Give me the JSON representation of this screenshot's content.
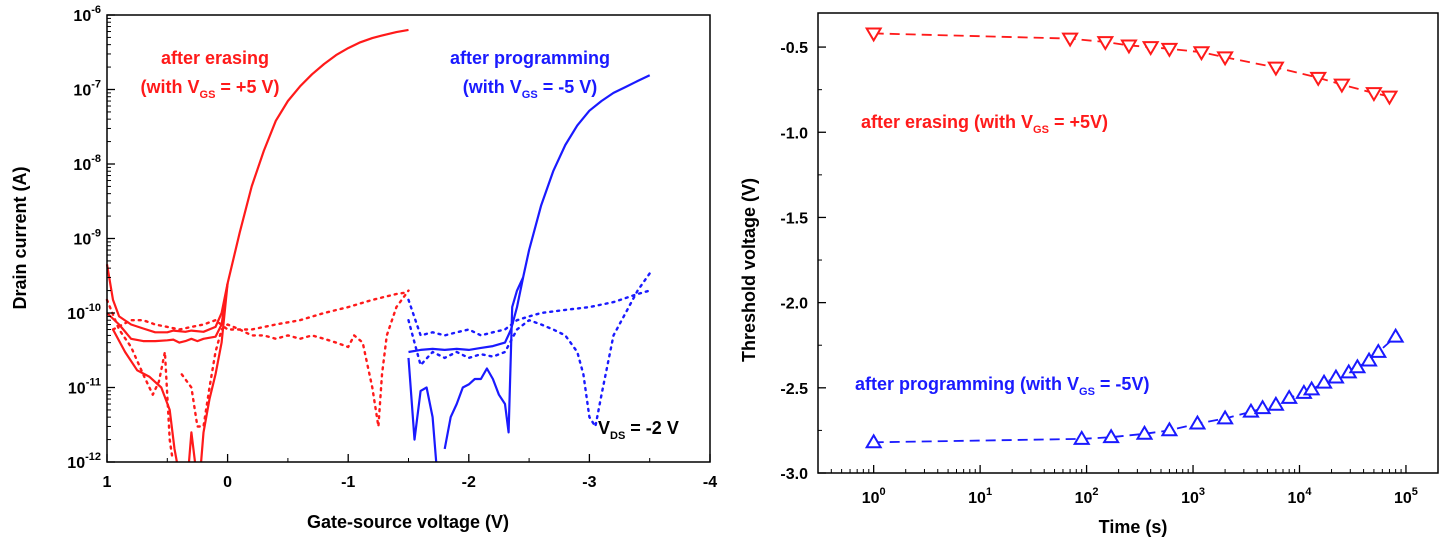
{
  "chart_data": [
    {
      "type": "line",
      "xlabel": "Gate-source voltage (V)",
      "ylabel": "Drain current (A)",
      "xlim": [
        1,
        -4
      ],
      "ylim": [
        1e-12,
        1e-06
      ],
      "yscale": "log",
      "x_ticks": [
        "1",
        "0",
        "-1",
        "-2",
        "-3",
        "-4"
      ],
      "y_ticks": [
        {
          "base": "10",
          "exp": "-12"
        },
        {
          "base": "10",
          "exp": "-11"
        },
        {
          "base": "10",
          "exp": "-10"
        },
        {
          "base": "10",
          "exp": "-9"
        },
        {
          "base": "10",
          "exp": "-8"
        },
        {
          "base": "10",
          "exp": "-7"
        },
        {
          "base": "10",
          "exp": "-6"
        }
      ],
      "colors": {
        "erase": "#ff1a1a",
        "program": "#1a1aff"
      },
      "annotations": {
        "erase_line1": "after erasing",
        "erase_line2_a": "(with V",
        "erase_line2_sub": "GS",
        "erase_line2_b": " = +5 V)",
        "program_line1": "after programming",
        "program_line2_a": "(with V",
        "program_line2_sub": "GS",
        "program_line2_b": " = -5 V)",
        "vds_a": "V",
        "vds_sub": "DS",
        "vds_b": " = -2 V"
      },
      "series": [
        {
          "color": "erase",
          "style": "solid",
          "points": [
            [
              1.0,
              4.5e-10
            ],
            [
              0.95,
              1.5e-10
            ],
            [
              0.9,
              9e-11
            ],
            [
              0.8,
              7e-11
            ],
            [
              0.7,
              6.2e-11
            ],
            [
              0.6,
              5.5e-11
            ],
            [
              0.5,
              5.5e-11
            ],
            [
              0.45,
              5.8e-11
            ],
            [
              0.35,
              5.6e-11
            ],
            [
              0.3,
              5.8e-11
            ],
            [
              0.2,
              5.6e-11
            ],
            [
              0.1,
              6.5e-11
            ],
            [
              0.05,
              1e-10
            ],
            [
              0.0,
              2.5e-10
            ],
            [
              -0.1,
              1.2e-09
            ],
            [
              -0.2,
              5e-09
            ],
            [
              -0.3,
              1.5e-08
            ],
            [
              -0.4,
              3.8e-08
            ],
            [
              -0.5,
              7e-08
            ],
            [
              -0.6,
              1.1e-07
            ],
            [
              -0.7,
              1.6e-07
            ],
            [
              -0.8,
              2.2e-07
            ],
            [
              -0.9,
              2.9e-07
            ],
            [
              -1.0,
              3.6e-07
            ],
            [
              -1.1,
              4.3e-07
            ],
            [
              -1.2,
              4.9e-07
            ],
            [
              -1.3,
              5.4e-07
            ],
            [
              -1.4,
              5.9e-07
            ],
            [
              -1.5,
              6.3e-07
            ]
          ]
        },
        {
          "color": "erase",
          "style": "solid",
          "points": [
            [
              1.0,
              1e-10
            ],
            [
              0.9,
              7e-11
            ],
            [
              0.8,
              4.5e-11
            ],
            [
              0.7,
              4.2e-11
            ],
            [
              0.6,
              4.2e-11
            ],
            [
              0.5,
              4.3e-11
            ],
            [
              0.45,
              4.4e-11
            ],
            [
              0.4,
              4e-11
            ],
            [
              0.35,
              4.2e-11
            ],
            [
              0.3,
              4.5e-11
            ],
            [
              0.25,
              4.2e-11
            ],
            [
              0.2,
              4.5e-11
            ],
            [
              0.1,
              4.8e-11
            ],
            [
              0.05,
              7e-11
            ],
            [
              0.0,
              2.5e-10
            ]
          ]
        },
        {
          "color": "erase",
          "style": "solid",
          "points": [
            [
              0.95,
              6e-11
            ],
            [
              0.85,
              3e-11
            ],
            [
              0.75,
              1.7e-11
            ],
            [
              0.65,
              1.4e-11
            ],
            [
              0.55,
              1e-11
            ],
            [
              0.48,
              5e-12
            ],
            [
              0.44,
              1.5e-12
            ],
            [
              0.42,
              1e-12
            ]
          ]
        },
        {
          "color": "erase",
          "style": "solid",
          "points": [
            [
              0.32,
              1e-12
            ],
            [
              0.3,
              2.5e-12
            ],
            [
              0.27,
              1e-12
            ]
          ]
        },
        {
          "color": "erase",
          "style": "solid",
          "points": [
            [
              0.22,
              1e-12
            ],
            [
              0.2,
              2.5e-12
            ],
            [
              0.15,
              7e-12
            ],
            [
              0.1,
              1.5e-11
            ],
            [
              0.05,
              4e-11
            ],
            [
              0.0,
              2.5e-10
            ]
          ]
        },
        {
          "color": "erase",
          "style": "dotted",
          "points": [
            [
              1.0,
              1.5e-10
            ],
            [
              0.9,
              6e-11
            ],
            [
              0.8,
              3.5e-11
            ],
            [
              0.7,
              1.5e-11
            ],
            [
              0.62,
              8e-12
            ],
            [
              0.57,
              1.2e-11
            ],
            [
              0.52,
              3e-11
            ],
            [
              0.48,
              2e-12
            ],
            [
              0.46,
              1.2e-12
            ]
          ]
        },
        {
          "color": "erase",
          "style": "dotted",
          "points": [
            [
              0.38,
              1.5e-11
            ],
            [
              0.3,
              1e-11
            ],
            [
              0.25,
              3e-12
            ],
            [
              0.2,
              3e-12
            ],
            [
              0.15,
              1e-11
            ],
            [
              0.1,
              3e-11
            ],
            [
              0.05,
              6e-11
            ],
            [
              0.0,
              7e-11
            ],
            [
              -0.1,
              6e-11
            ],
            [
              -0.2,
              5e-11
            ],
            [
              -0.3,
              5e-11
            ],
            [
              -0.4,
              4.5e-11
            ],
            [
              -0.5,
              5e-11
            ],
            [
              -0.6,
              4.5e-11
            ],
            [
              -0.7,
              5e-11
            ],
            [
              -0.8,
              4.5e-11
            ],
            [
              -0.9,
              4e-11
            ],
            [
              -1.0,
              3.5e-11
            ],
            [
              -1.05,
              5e-11
            ],
            [
              -1.12,
              4e-11
            ],
            [
              -1.16,
              2e-11
            ],
            [
              -1.2,
              1e-11
            ],
            [
              -1.25,
              3e-12
            ],
            [
              -1.28,
              1.5e-11
            ],
            [
              -1.32,
              5e-11
            ],
            [
              -1.4,
              1.2e-10
            ],
            [
              -1.5,
              2e-10
            ]
          ]
        },
        {
          "color": "erase",
          "style": "dotted",
          "points": [
            [
              0.95,
              6e-11
            ],
            [
              0.8,
              8e-11
            ],
            [
              0.7,
              8e-11
            ],
            [
              0.6,
              7e-11
            ],
            [
              0.5,
              6.5e-11
            ],
            [
              0.4,
              6e-11
            ],
            [
              0.3,
              6.5e-11
            ],
            [
              0.2,
              7e-11
            ],
            [
              0.1,
              8e-11
            ],
            [
              0.0,
              6e-11
            ],
            [
              -0.2,
              6e-11
            ],
            [
              -0.4,
              7e-11
            ],
            [
              -0.6,
              8e-11
            ],
            [
              -0.8,
              1e-10
            ],
            [
              -1.0,
              1.2e-10
            ],
            [
              -1.2,
              1.5e-10
            ],
            [
              -1.4,
              1.8e-10
            ],
            [
              -1.5,
              1.9e-10
            ]
          ]
        },
        {
          "color": "program",
          "style": "solid",
          "points": [
            [
              -1.5,
              3e-11
            ],
            [
              -1.6,
              3.2e-11
            ],
            [
              -1.7,
              3.3e-11
            ],
            [
              -1.8,
              3.2e-11
            ],
            [
              -1.9,
              3.3e-11
            ],
            [
              -2.0,
              3.2e-11
            ],
            [
              -2.1,
              3.4e-11
            ],
            [
              -2.2,
              3.6e-11
            ],
            [
              -2.3,
              4e-11
            ],
            [
              -2.35,
              6e-11
            ],
            [
              -2.4,
              1.2e-10
            ],
            [
              -2.45,
              3e-10
            ],
            [
              -2.5,
              7e-10
            ],
            [
              -2.6,
              2.8e-09
            ],
            [
              -2.7,
              8e-09
            ],
            [
              -2.8,
              1.8e-08
            ],
            [
              -2.9,
              3.3e-08
            ],
            [
              -3.0,
              5.2e-08
            ],
            [
              -3.1,
              7e-08
            ],
            [
              -3.2,
              9e-08
            ],
            [
              -3.3,
              1.08e-07
            ],
            [
              -3.4,
              1.3e-07
            ],
            [
              -3.5,
              1.55e-07
            ]
          ]
        },
        {
          "color": "program",
          "style": "solid",
          "points": [
            [
              -1.5,
              2.5e-11
            ],
            [
              -1.55,
              2e-12
            ],
            [
              -1.6,
              9e-12
            ],
            [
              -1.65,
              1e-11
            ],
            [
              -1.7,
              4e-12
            ],
            [
              -1.73,
              1e-12
            ]
          ]
        },
        {
          "color": "program",
          "style": "solid",
          "points": [
            [
              -1.8,
              1.5e-12
            ],
            [
              -1.85,
              4e-12
            ],
            [
              -1.9,
              6e-12
            ],
            [
              -1.95,
              1e-11
            ],
            [
              -2.0,
              1.1e-11
            ],
            [
              -2.05,
              1.3e-11
            ],
            [
              -2.1,
              1.3e-11
            ],
            [
              -2.15,
              1.8e-11
            ],
            [
              -2.2,
              1.3e-11
            ],
            [
              -2.25,
              8e-12
            ],
            [
              -2.3,
              6e-12
            ],
            [
              -2.33,
              2.5e-12
            ],
            [
              -2.36,
              1.2e-10
            ],
            [
              -2.4,
              2e-10
            ],
            [
              -2.45,
              3e-10
            ]
          ]
        },
        {
          "color": "program",
          "style": "dotted",
          "points": [
            [
              -1.5,
              8e-11
            ],
            [
              -1.55,
              4e-11
            ],
            [
              -1.6,
              2e-11
            ],
            [
              -1.7,
              3e-11
            ],
            [
              -1.8,
              2.5e-11
            ],
            [
              -1.9,
              3e-11
            ],
            [
              -2.0,
              2.5e-11
            ],
            [
              -2.1,
              2.8e-11
            ],
            [
              -2.2,
              2.6e-11
            ],
            [
              -2.3,
              3e-11
            ],
            [
              -2.4,
              6e-11
            ],
            [
              -2.5,
              8e-11
            ],
            [
              -2.6,
              7e-11
            ],
            [
              -2.7,
              6e-11
            ],
            [
              -2.8,
              5e-11
            ],
            [
              -2.9,
              3e-11
            ],
            [
              -2.95,
              1.5e-11
            ],
            [
              -3.0,
              4e-12
            ],
            [
              -3.05,
              3e-12
            ],
            [
              -3.1,
              8e-12
            ],
            [
              -3.15,
              2e-11
            ],
            [
              -3.2,
              5e-11
            ],
            [
              -3.3,
              1e-10
            ],
            [
              -3.4,
              2e-10
            ],
            [
              -3.5,
              3.4e-10
            ]
          ]
        },
        {
          "color": "program",
          "style": "dotted",
          "points": [
            [
              -1.5,
              1.5e-10
            ],
            [
              -1.6,
              5e-11
            ],
            [
              -1.7,
              5.5e-11
            ],
            [
              -1.8,
              5e-11
            ],
            [
              -1.9,
              5.5e-11
            ],
            [
              -2.0,
              6e-11
            ],
            [
              -2.1,
              5e-11
            ],
            [
              -2.2,
              5.5e-11
            ],
            [
              -2.3,
              6e-11
            ],
            [
              -2.4,
              8e-11
            ],
            [
              -2.5,
              9e-11
            ],
            [
              -2.6,
              1e-10
            ],
            [
              -2.8,
              1.1e-10
            ],
            [
              -3.0,
              1.2e-10
            ],
            [
              -3.2,
              1.4e-10
            ],
            [
              -3.4,
              1.8e-10
            ],
            [
              -3.5,
              2e-10
            ]
          ]
        }
      ]
    },
    {
      "type": "line",
      "xlabel": "Time (s)",
      "ylabel": "Threshold voltage (V)",
      "xscale": "log",
      "xlim": [
        0.3,
        200000
      ],
      "ylim": [
        -3.0,
        -0.3
      ],
      "x_ticks": [
        {
          "base": "10",
          "exp": "0"
        },
        {
          "base": "10",
          "exp": "1"
        },
        {
          "base": "10",
          "exp": "2"
        },
        {
          "base": "10",
          "exp": "3"
        },
        {
          "base": "10",
          "exp": "4"
        },
        {
          "base": "10",
          "exp": "5"
        }
      ],
      "y_ticks": [
        "-0.5",
        "-1.0",
        "-1.5",
        "-2.0",
        "-2.5",
        "-3.0"
      ],
      "colors": {
        "erase": "#ff1a1a",
        "program": "#1a1aff"
      },
      "annotations": {
        "erase_a": "after erasing (with V",
        "erase_sub": "GS",
        "erase_b": " = +5V)",
        "program_a": "after programming (with V",
        "program_sub": "GS",
        "program_b": " = -5V)"
      },
      "series": [
        {
          "color": "erase",
          "marker": "triangle-down",
          "x": [
            1,
            70,
            150,
            250,
            400,
            600,
            1200,
            2000,
            6000,
            15000,
            25000,
            50000,
            70000
          ],
          "y": [
            -0.42,
            -0.45,
            -0.47,
            -0.49,
            -0.5,
            -0.51,
            -0.53,
            -0.56,
            -0.62,
            -0.68,
            -0.72,
            -0.77,
            -0.79
          ]
        },
        {
          "color": "program",
          "marker": "triangle-up",
          "x": [
            1,
            90,
            170,
            350,
            600,
            1100,
            2000,
            3500,
            4500,
            6000,
            8000,
            11000,
            13000,
            17000,
            22000,
            29000,
            35000,
            45000,
            55000,
            80000
          ],
          "y": [
            -2.82,
            -2.8,
            -2.79,
            -2.77,
            -2.75,
            -2.71,
            -2.68,
            -2.64,
            -2.62,
            -2.6,
            -2.56,
            -2.53,
            -2.51,
            -2.47,
            -2.44,
            -2.41,
            -2.38,
            -2.34,
            -2.29,
            -2.2
          ]
        }
      ]
    }
  ]
}
